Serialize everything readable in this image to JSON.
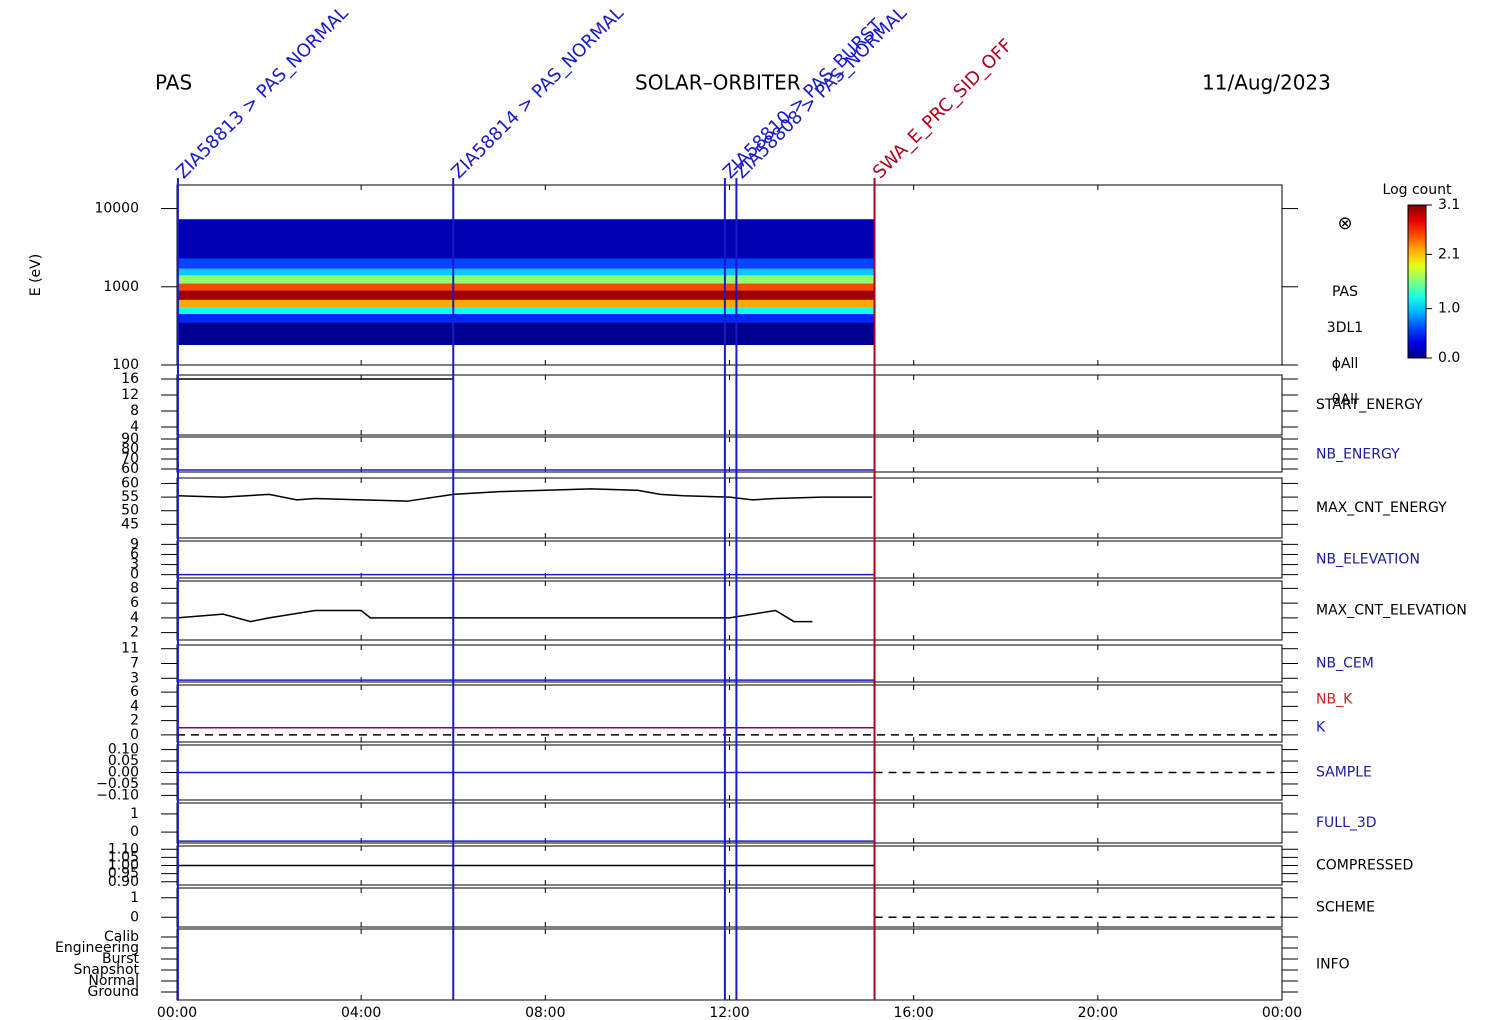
{
  "header": {
    "left": "PAS",
    "center": "SOLAR–ORBITER",
    "right": "11/Aug/2023"
  },
  "time_axis": {
    "xlim": [
      0,
      24
    ],
    "xticks": [
      {
        "value": 0,
        "label": "00:00"
      },
      {
        "value": 4,
        "label": "04:00"
      },
      {
        "value": 8,
        "label": "08:00"
      },
      {
        "value": 12,
        "label": "12:00"
      },
      {
        "value": 16,
        "label": "16:00"
      },
      {
        "value": 20,
        "label": "20:00"
      },
      {
        "value": 24,
        "label": "00:00"
      }
    ]
  },
  "events": [
    {
      "x": 0.02,
      "label": "ZIA58813 > PAS_NORMAL",
      "color": "#1a1acc"
    },
    {
      "x": 6.0,
      "label": "ZIA58814 > PAS_NORMAL",
      "color": "#1a1acc"
    },
    {
      "x": 11.9,
      "label": "ZIA58810 > PAS_BURST",
      "color": "#1a1acc"
    },
    {
      "x": 12.15,
      "label": "ZIA58808 > PAS_NORMAL",
      "color": "#1a1acc"
    },
    {
      "x": 15.15,
      "label": "SWA_E_PRC_SID_OFF",
      "color": "#b00020"
    }
  ],
  "colorbar": {
    "title": "Log count",
    "lim": [
      0.0,
      3.1
    ],
    "ticks": [
      {
        "value": 0,
        "label": "0.0"
      },
      {
        "value": 1,
        "label": "1.0"
      },
      2.1,
      3.1
    ]
  },
  "chart_data": [
    {
      "type": "spectrogram",
      "ylabel": "E (eV)",
      "log": true,
      "ylim": [
        100,
        20000
      ],
      "yticks": [
        100,
        1000,
        10000
      ],
      "labels": [
        {
          "text": "PAS",
          "color": "#000"
        },
        {
          "text": "3DL1",
          "color": "#000"
        },
        {
          "text": "ϕAll",
          "color": "#000"
        },
        {
          "text": "θAll",
          "color": "#000"
        }
      ],
      "symbol": "⊗",
      "xrange": [
        0,
        15.15
      ],
      "bands": [
        {
          "ylim": [
            180,
            350
          ],
          "value": 0.05
        },
        {
          "ylim": [
            350,
            450
          ],
          "value": 0.5
        },
        {
          "ylim": [
            450,
            550
          ],
          "value": 1.2
        },
        {
          "ylim": [
            550,
            680
          ],
          "value": 2.2
        },
        {
          "ylim": [
            680,
            900
          ],
          "value": 3.0
        },
        {
          "ylim": [
            900,
            1100
          ],
          "value": 2.5
        },
        {
          "ylim": [
            1100,
            1400
          ],
          "value": 1.6
        },
        {
          "ylim": [
            1400,
            1700
          ],
          "value": 1.0
        },
        {
          "ylim": [
            1700,
            2300
          ],
          "value": 0.6
        },
        {
          "ylim": [
            2300,
            7300
          ],
          "value": 0.15
        }
      ]
    },
    {
      "type": "line",
      "ylim": [
        2,
        17
      ],
      "yticks": [
        4,
        8,
        12,
        16
      ],
      "labels": [
        {
          "text": "START_ENERGY",
          "color": "#000"
        }
      ],
      "series": [
        {
          "color": "#000",
          "x": [
            0,
            6
          ],
          "values": [
            16,
            16
          ]
        }
      ]
    },
    {
      "type": "line",
      "ylim": [
        57,
        92
      ],
      "yticks": [
        60,
        70,
        80,
        90
      ],
      "labels": [
        {
          "text": "NB_ENERGY",
          "color": "#1a1aa0"
        }
      ],
      "series": [
        {
          "color": "#1a1acc",
          "x": [
            0,
            15.15
          ],
          "values": [
            59,
            59
          ]
        }
      ]
    },
    {
      "type": "line",
      "ylim": [
        40,
        62
      ],
      "yticks": [
        45,
        50,
        55,
        60
      ],
      "labels": [
        {
          "text": "MAX_CNT_ENERGY",
          "color": "#000"
        }
      ],
      "series": [
        {
          "color": "#000",
          "x": [
            0,
            1,
            2,
            2.6,
            3,
            4,
            5,
            6,
            7,
            8,
            9,
            10,
            10.5,
            11,
            12,
            12.5,
            13,
            14,
            15.1
          ],
          "values": [
            55.5,
            55,
            56,
            54,
            54.5,
            54,
            53.5,
            56,
            57,
            57.5,
            58,
            57.5,
            56,
            55.5,
            55,
            54,
            54.5,
            55,
            55
          ]
        }
      ]
    },
    {
      "type": "line",
      "ylim": [
        -1,
        10
      ],
      "yticks": [
        0,
        3,
        6,
        9
      ],
      "labels": [
        {
          "text": "NB_ELEVATION",
          "color": "#1a1aa0"
        }
      ],
      "series": [
        {
          "color": "#1a1acc",
          "x": [
            0,
            15.15
          ],
          "values": [
            0,
            0
          ]
        }
      ]
    },
    {
      "type": "line",
      "ylim": [
        1,
        9
      ],
      "yticks": [
        2,
        4,
        6,
        8
      ],
      "labels": [
        {
          "text": "MAX_CNT_ELEVATION",
          "color": "#000"
        }
      ],
      "series": [
        {
          "color": "#000",
          "x": [
            0,
            1,
            1.6,
            2,
            3,
            4,
            4.2,
            6,
            8,
            10,
            12,
            13,
            13.4,
            13.8
          ],
          "values": [
            4,
            4.5,
            3.5,
            4,
            5,
            5,
            4,
            4,
            4,
            4,
            4,
            5,
            3.5,
            3.5
          ]
        }
      ]
    },
    {
      "type": "line",
      "ylim": [
        2,
        12
      ],
      "yticks": [
        3,
        7,
        11
      ],
      "labels": [
        {
          "text": "NB_CEM",
          "color": "#1a1aa0"
        }
      ],
      "series": [
        {
          "color": "#1a1acc",
          "x": [
            0,
            15.15
          ],
          "values": [
            2.5,
            2.5
          ]
        }
      ]
    },
    {
      "type": "line",
      "ylim": [
        -1,
        7
      ],
      "yticks": [
        0,
        2,
        4,
        6
      ],
      "labels": [
        {
          "text": "NB_K",
          "color": "#d02020"
        },
        {
          "text": "K",
          "color": "#1a1acc"
        }
      ],
      "series": [
        {
          "color": "#900060",
          "x": [
            0,
            15.15
          ],
          "values": [
            1,
            1
          ]
        },
        {
          "color": "#000",
          "dash": true,
          "x": [
            0,
            24
          ],
          "values": [
            0,
            0
          ]
        }
      ]
    },
    {
      "type": "line",
      "ylim": [
        -0.12,
        0.12
      ],
      "yticks": [
        {
          "value": -0.1,
          "label": "−0.10"
        },
        {
          "value": -0.05,
          "label": "−0.05"
        },
        {
          "value": 0,
          "label": "0.00"
        },
        0.05,
        {
          "value": 0.1,
          "label": "0.10"
        }
      ],
      "labels": [
        {
          "text": "SAMPLE",
          "color": "#1a1aa0"
        }
      ],
      "series": [
        {
          "color": "#1a1acc",
          "x": [
            0,
            15.15
          ],
          "values": [
            0,
            0
          ]
        },
        {
          "color": "#000",
          "dash": true,
          "x": [
            15.15,
            24
          ],
          "values": [
            0,
            0
          ]
        }
      ]
    },
    {
      "type": "line",
      "ylim": [
        -0.6,
        1.6
      ],
      "yticks": [
        0,
        1
      ],
      "labels": [
        {
          "text": "FULL_3D",
          "color": "#1a1aa0"
        }
      ],
      "series": [
        {
          "color": "#1a1acc",
          "x": [
            0,
            15.15
          ],
          "values": [
            -0.5,
            -0.5
          ]
        }
      ]
    },
    {
      "type": "line",
      "ylim": [
        0.88,
        1.12
      ],
      "yticks": [
        {
          "value": 0.9,
          "label": "0.90"
        },
        0.95,
        {
          "value": 1,
          "label": "1.00"
        },
        1.05,
        {
          "value": 1.1,
          "label": "1.10"
        }
      ],
      "labels": [
        {
          "text": "COMPRESSED",
          "color": "#000"
        }
      ],
      "series": [
        {
          "color": "#000",
          "x": [
            0,
            15.15
          ],
          "values": [
            1,
            1
          ]
        }
      ]
    },
    {
      "type": "line",
      "ylim": [
        -0.5,
        1.5
      ],
      "yticks": [
        0,
        1
      ],
      "labels": [
        {
          "text": "SCHEME",
          "color": "#000"
        }
      ],
      "series": [
        {
          "color": "#000",
          "dash": true,
          "x": [
            15.15,
            24
          ],
          "values": [
            0,
            0
          ]
        }
      ]
    },
    {
      "type": "category",
      "categories": [
        "Ground",
        "Normal",
        "Snapshot",
        "Burst",
        "Engineering",
        "Calib"
      ],
      "labels": [
        {
          "text": "INFO",
          "color": "#000"
        }
      ]
    }
  ]
}
